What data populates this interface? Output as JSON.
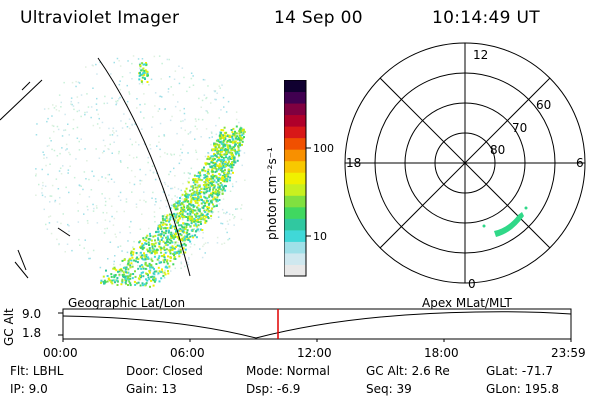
{
  "header": {
    "instrument": "Ultraviolet Imager",
    "date": "14 Sep 00",
    "time": "10:14:49 UT"
  },
  "colorbar": {
    "unit_label": "photon cm⁻²s⁻¹",
    "tick_high": "100",
    "tick_low": "10",
    "colors": [
      "#e8e8e8",
      "#cfe8ef",
      "#9fe0e8",
      "#40d8d8",
      "#30c8a0",
      "#40d860",
      "#80e040",
      "#c8f020",
      "#f0f000",
      "#f8c800",
      "#f89000",
      "#f05000",
      "#d81818",
      "#b0002a",
      "#800040",
      "#400050",
      "#100030"
    ]
  },
  "polar_plot": {
    "mlt_labels": {
      "top": "12",
      "left": "18",
      "right": "6",
      "bottom": "0"
    },
    "lat_labels": [
      "60",
      "70",
      "80"
    ],
    "emission_color": "#30d888"
  },
  "timeline": {
    "left_label": "Geographic Lat/Lon",
    "right_label": "Apex MLat/MLT",
    "axis_label": "GC Alt",
    "y_max": "9.0",
    "y_min": "1.8",
    "x_ticks": [
      "00:00",
      "06:00",
      "12:00",
      "18:00",
      "23:59"
    ],
    "marker_color": "#e00000"
  },
  "info": {
    "filter": {
      "label": "Flt:",
      "value": "LBHL"
    },
    "ip": {
      "label": "IP:",
      "value": "9.0"
    },
    "door": {
      "label": "Door:",
      "value": "Closed"
    },
    "gain": {
      "label": "Gain:",
      "value": "13"
    },
    "mode": {
      "label": "Mode:",
      "value": "Normal"
    },
    "dsp": {
      "label": "Dsp:",
      "value": "-6.9"
    },
    "gc_alt": {
      "label": "GC Alt:",
      "value": "2.6 Re"
    },
    "seq": {
      "label": "Seq:",
      "value": "39"
    },
    "glat": {
      "label": "GLat:",
      "value": "-71.7"
    },
    "glon": {
      "label": "GLon:",
      "value": "195.8"
    }
  }
}
